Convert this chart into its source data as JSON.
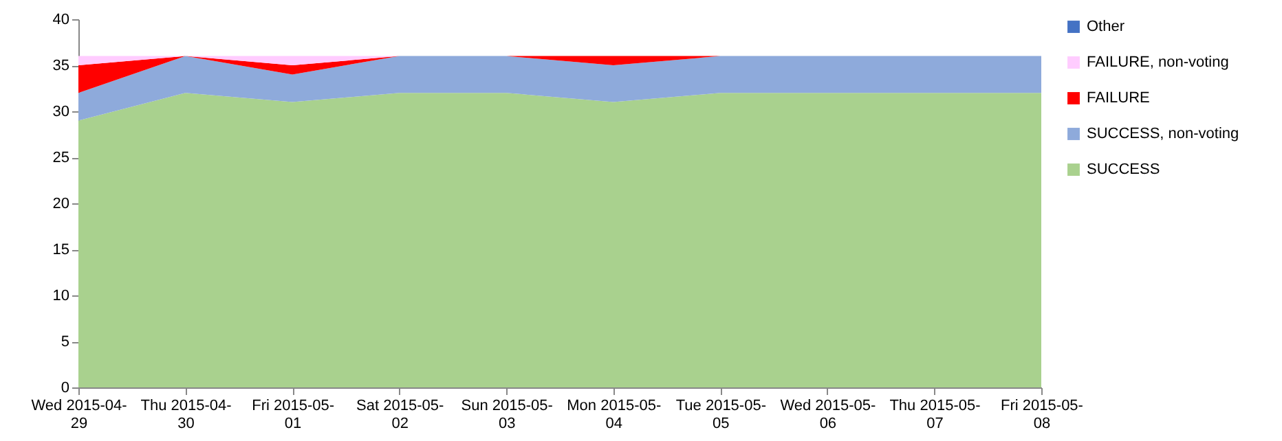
{
  "chart_data": {
    "type": "area",
    "stacked": true,
    "categories": [
      "Wed 2015-04-29",
      "Thu 2015-04-30",
      "Fri 2015-05-01",
      "Sat 2015-05-02",
      "Sun 2015-05-03",
      "Mon 2015-05-04",
      "Tue 2015-05-05",
      "Wed 2015-05-06",
      "Thu 2015-05-07",
      "Fri 2015-05-08"
    ],
    "series": [
      {
        "name": "SUCCESS",
        "color": "#a9d18e",
        "values": [
          29,
          32,
          31,
          32,
          32,
          31,
          32,
          32,
          32,
          32
        ]
      },
      {
        "name": "SUCCESS, non-voting",
        "color": "#8eaadb",
        "values": [
          3,
          4,
          3,
          4,
          4,
          4,
          4,
          4,
          4,
          4
        ]
      },
      {
        "name": "FAILURE",
        "color": "#ff0000",
        "values": [
          3,
          0,
          1,
          0,
          0,
          1,
          0,
          0,
          0,
          0
        ]
      },
      {
        "name": "FAILURE, non-voting",
        "color": "#ffccff",
        "values": [
          1,
          0,
          1,
          0,
          0,
          0,
          0,
          0,
          0,
          0
        ]
      },
      {
        "name": "Other",
        "color": "#4472c4",
        "values": [
          null,
          null,
          null,
          null,
          null,
          null,
          null,
          null,
          null,
          null
        ]
      }
    ],
    "ylim": [
      0,
      40
    ],
    "yticks": [
      0,
      5,
      10,
      15,
      20,
      25,
      30,
      35,
      40
    ],
    "grid": false,
    "legend": "right"
  }
}
